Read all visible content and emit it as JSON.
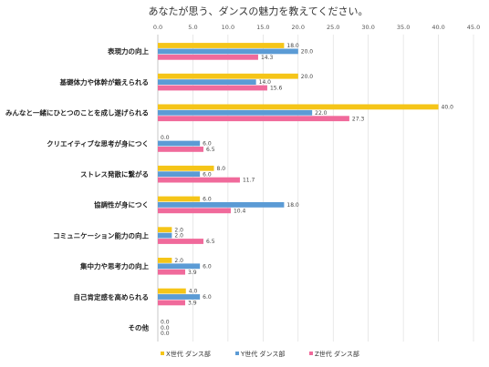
{
  "chart_data": {
    "type": "bar",
    "orientation": "horizontal",
    "title": "あなたが思う、ダンスの魅力を教えてください。",
    "xlim": [
      0,
      45
    ],
    "ticks": [
      "0.0",
      "5.0",
      "10.0",
      "15.0",
      "20.0",
      "25.0",
      "30.0",
      "35.0",
      "40.0",
      "45.0"
    ],
    "tick_values": [
      0,
      5,
      10,
      15,
      20,
      25,
      30,
      35,
      40,
      45
    ],
    "grid": true,
    "legend_position": "bottom",
    "categories": [
      "表現力の向上",
      "基礎体力や体幹が鍛えられる",
      "みんなと一緒にひとつのことを成し遂げられる",
      "クリエイティブな思考が身につく",
      "ストレス発散に繋がる",
      "協調性が身につく",
      "コミュニケーション能力の向上",
      "集中力や思考力の向上",
      "自己肯定感を高められる",
      "その他"
    ],
    "series": [
      {
        "name": "X世代 ダンス部",
        "color": "#F5C518",
        "values": [
          18.0,
          20.0,
          40.0,
          0.0,
          8.0,
          6.0,
          2.0,
          2.0,
          4.0,
          0.0
        ],
        "labels": [
          "18.0",
          "20.0",
          "40.0",
          "0.0",
          "8.0",
          "6.0",
          "2.0",
          "2.0",
          "4.0",
          "0.0"
        ]
      },
      {
        "name": "Y世代 ダンス部",
        "color": "#5B9BD5",
        "values": [
          20.0,
          14.0,
          22.0,
          6.0,
          6.0,
          18.0,
          2.0,
          6.0,
          6.0,
          0.0
        ],
        "labels": [
          "20.0",
          "14.0",
          "22.0",
          "6.0",
          "6.0",
          "18.0",
          "2.0",
          "6.0",
          "6.0",
          "0.0"
        ]
      },
      {
        "name": "Z世代 ダンス部",
        "color": "#F06A9B",
        "values": [
          14.3,
          15.6,
          27.3,
          6.5,
          11.7,
          10.4,
          6.5,
          3.9,
          3.9,
          0.0
        ],
        "labels": [
          "14.3",
          "15.6",
          "27.3",
          "6.5",
          "11.7",
          "10.4",
          "6.5",
          "3.9",
          "3.9",
          "0.0"
        ]
      }
    ]
  }
}
